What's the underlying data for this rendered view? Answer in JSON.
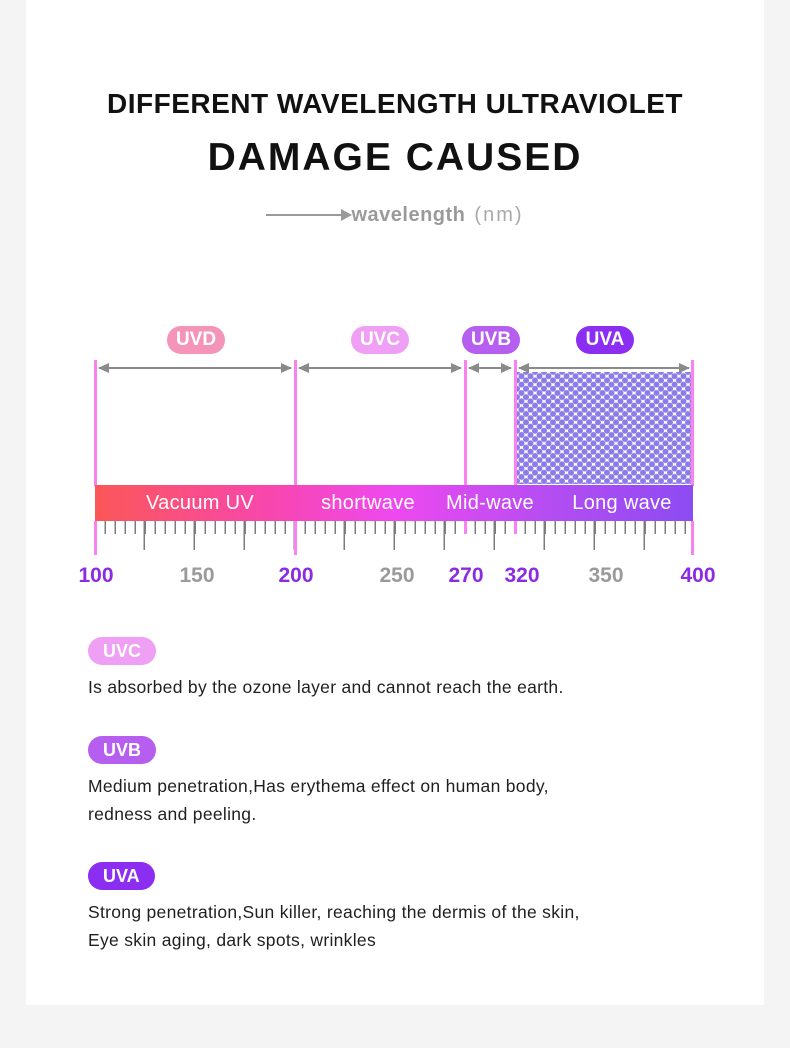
{
  "colors": {
    "page_bg": "#f4f4f5",
    "card_bg": "#ffffff",
    "title": "#111111",
    "caption_gray": "#9a9a9a",
    "marker_line": "#fb80f0",
    "arrow_gray": "#8a8a8a",
    "dot_pattern": "#8b7ce8",
    "tick_highlight": "#8b2be2",
    "tick_muted": "#9a9a9a"
  },
  "header": {
    "title_line1": "DIFFERENT WAVELENGTH ULTRAVIOLET",
    "title_line2": "DAMAGE CAUSED",
    "axis_label": "wavelength",
    "axis_unit": "(nm)"
  },
  "chart_data": {
    "type": "band-scale-diagram",
    "title": "DIFFERENT WAVELENGTH ULTRAVIOLET DAMAGE CAUSED",
    "xlabel": "wavelength (nm)",
    "axis_range_nm": [
      100,
      400
    ],
    "bands": [
      {
        "label": "UVD",
        "from_nm": 100,
        "to_nm": 200,
        "bar_label": "Vacuum UV",
        "badge_color": "#f494b8",
        "pattern": "none"
      },
      {
        "label": "UVC",
        "from_nm": 200,
        "to_nm": 270,
        "bar_label": "shortwave",
        "badge_color": "#ef9ff4",
        "pattern": "none"
      },
      {
        "label": "UVB",
        "from_nm": 270,
        "to_nm": 320,
        "bar_label": "Mid-wave",
        "badge_color": "#b55ef0",
        "pattern": "none"
      },
      {
        "label": "UVA",
        "from_nm": 320,
        "to_nm": 400,
        "bar_label": "Long wave",
        "badge_color": "#8c2df2",
        "pattern": "dotted"
      }
    ],
    "bar_gradient": [
      "#fa5757",
      "#f846b0",
      "#ee49f0",
      "#b44df2",
      "#8c4cf2"
    ],
    "ticks": [
      {
        "value": "100",
        "nm": 100,
        "highlight": true
      },
      {
        "value": "150",
        "nm": 150,
        "highlight": false
      },
      {
        "value": "200",
        "nm": 200,
        "highlight": true
      },
      {
        "value": "250",
        "nm": 250,
        "highlight": false
      },
      {
        "value": "270",
        "nm": 270,
        "highlight": true
      },
      {
        "value": "320",
        "nm": 320,
        "highlight": true
      },
      {
        "value": "350",
        "nm": 350,
        "highlight": false
      },
      {
        "value": "400",
        "nm": 400,
        "highlight": true
      }
    ]
  },
  "legend": [
    {
      "name": "UVC",
      "badge_color": "#ef9ff4",
      "lines": [
        "Is absorbed by the ozone layer and cannot reach the earth.",
        ""
      ]
    },
    {
      "name": "UVB",
      "badge_color": "#b55ef0",
      "lines": [
        "Medium penetration,Has erythema effect on human body,",
        "redness and peeling."
      ]
    },
    {
      "name": "UVA",
      "badge_color": "#8c2df2",
      "lines": [
        "Strong penetration,Sun killer, reaching the dermis of the skin,",
        "Eye skin aging, dark spots, wrinkles"
      ]
    }
  ]
}
